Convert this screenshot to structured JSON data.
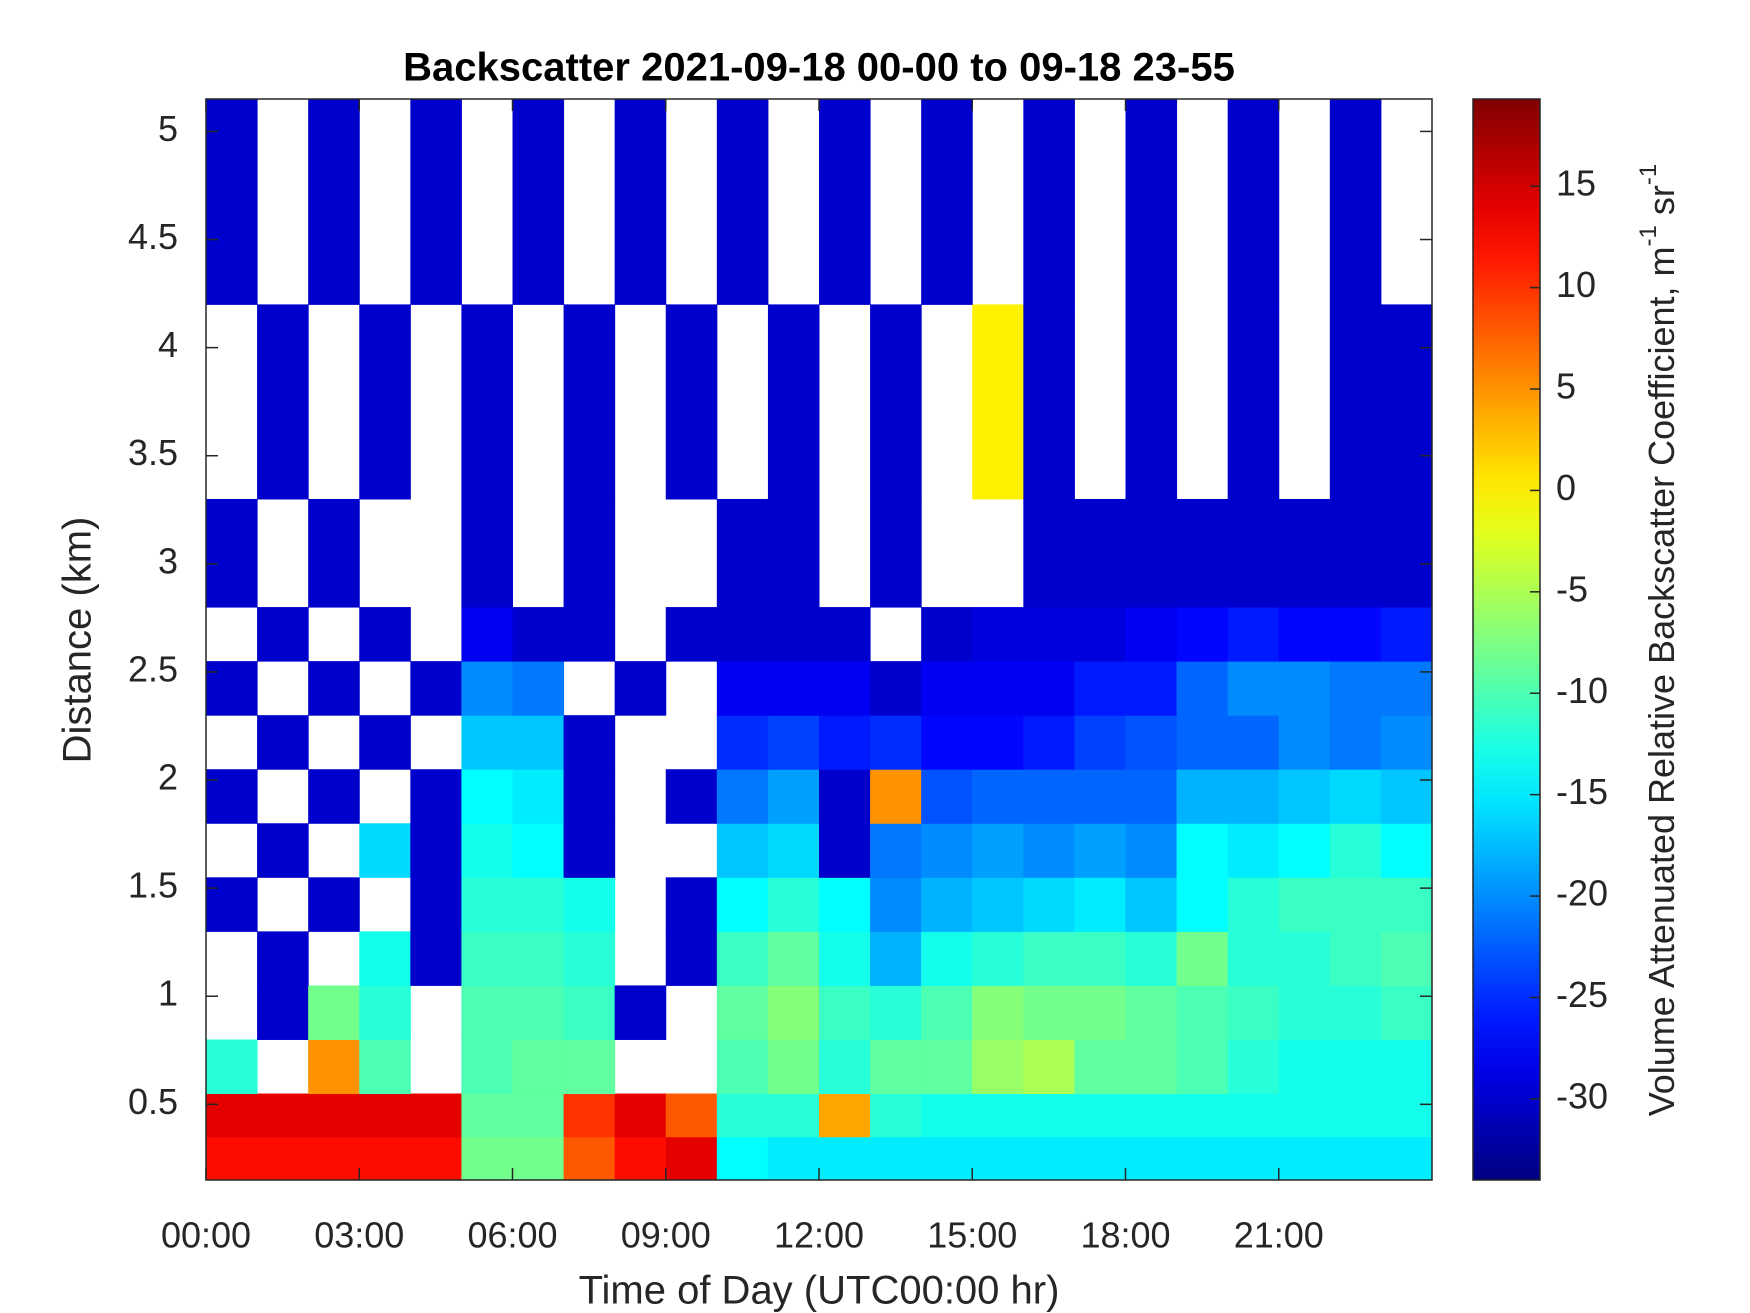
{
  "chart_data": {
    "type": "heatmap",
    "title": "Backscatter 2021-09-18 00-00 to 09-18 23-55",
    "xlabel": "Time of Day (UTC00:00 hr)",
    "ylabel": "Distance (km)",
    "colorbar_label": [
      "Volume Attenuated Relative Backscatter Coefficient, m",
      "-1",
      " sr",
      "-1"
    ],
    "colormap": "jet",
    "xlim": [
      0,
      24
    ],
    "ylim": [
      0.15,
      5.15
    ],
    "clim": [
      -34,
      19.3
    ],
    "xticks": [
      {
        "value": 0,
        "label": "00:00"
      },
      {
        "value": 3,
        "label": "03:00"
      },
      {
        "value": 6,
        "label": "06:00"
      },
      {
        "value": 9,
        "label": "09:00"
      },
      {
        "value": 12,
        "label": "12:00"
      },
      {
        "value": 15,
        "label": "15:00"
      },
      {
        "value": 18,
        "label": "18:00"
      },
      {
        "value": 21,
        "label": "21:00"
      }
    ],
    "yticks": [
      0.5,
      1,
      1.5,
      2,
      2.5,
      3,
      3.5,
      4,
      4.5,
      5
    ],
    "cticks": [
      -30,
      -25,
      -20,
      -15,
      -10,
      -5,
      0,
      5,
      10,
      15
    ],
    "x_edges": [
      0,
      1,
      2,
      3,
      4,
      5,
      6,
      7,
      8,
      9,
      10,
      11,
      12,
      13,
      14,
      15,
      16,
      17,
      18,
      19,
      20,
      21,
      22,
      23,
      24
    ],
    "y_edges": [
      0.15,
      0.35,
      0.55,
      0.8,
      1.05,
      1.3,
      1.55,
      1.8,
      2.05,
      2.3,
      2.55,
      2.8,
      3.3,
      4.2,
      5.15
    ],
    "z": [
      [
        12,
        12,
        12,
        12,
        12,
        -8,
        -8,
        8,
        12,
        14,
        -14,
        -15,
        -15,
        -15,
        -15,
        -15,
        -15,
        -15,
        -15,
        -15,
        -15,
        -15,
        -15,
        -15
      ],
      [
        14,
        14,
        14,
        14,
        14,
        -9,
        -9,
        10,
        14,
        8,
        -12,
        -12,
        4,
        -12,
        -13,
        -13,
        -13,
        -13,
        -13,
        -13,
        -13,
        -13,
        -13,
        -13
      ],
      [
        -12,
        null,
        5,
        -10,
        null,
        -10,
        -9,
        -9,
        null,
        null,
        -10,
        -8,
        -12,
        -9,
        -9,
        -6,
        -5,
        -9,
        -9,
        -10,
        -12,
        -13,
        -13,
        -13
      ],
      [
        null,
        -30,
        -8,
        -12,
        null,
        -10,
        -10,
        -11,
        -30,
        null,
        -9,
        -7,
        -11,
        -12,
        -10,
        -7,
        -8,
        -8,
        -9,
        -10,
        -11,
        -12,
        -12,
        -11
      ],
      [
        null,
        -30,
        null,
        -13,
        -30,
        -11,
        -11,
        -12,
        null,
        -30,
        -11,
        -9,
        -13,
        -18,
        -13,
        -12,
        -11,
        -11,
        -12,
        -8,
        -12,
        -12,
        -11,
        -10
      ],
      [
        -30,
        null,
        -30,
        null,
        -30,
        -12,
        -12,
        -13,
        null,
        -30,
        -14,
        -12,
        -14,
        -20,
        -18,
        -17,
        -16,
        -15,
        -17,
        -14,
        -12,
        -11,
        -11,
        -11
      ],
      [
        null,
        -30,
        null,
        -16,
        -30,
        -13,
        -14,
        -30,
        null,
        null,
        -17,
        -16,
        -30,
        -21,
        -20,
        -19,
        -20,
        -19,
        -20,
        -14,
        -15,
        -14,
        -12,
        -14
      ],
      [
        -30,
        null,
        -30,
        null,
        -30,
        -14,
        -15,
        -30,
        null,
        -30,
        -21,
        -19,
        -30,
        5,
        -23,
        -22,
        -22,
        -22,
        -22,
        -18,
        -18,
        -17,
        -16,
        -17
      ],
      [
        null,
        -30,
        null,
        -30,
        null,
        -17,
        -17,
        -30,
        null,
        null,
        -25,
        -24,
        -26,
        -25,
        -27,
        -27,
        -26,
        -24,
        -23,
        -22,
        -22,
        -20,
        -21,
        -20
      ],
      [
        -30,
        null,
        -30,
        null,
        -30,
        -20,
        -21,
        null,
        -30,
        null,
        -28,
        -28,
        -28,
        -30,
        -28,
        -28,
        -28,
        -26,
        -26,
        -22,
        -20,
        -20,
        -21,
        -21
      ],
      [
        null,
        -30,
        null,
        -30,
        null,
        -28,
        -30,
        -30,
        null,
        -30,
        -30,
        -30,
        -30,
        null,
        -30,
        -29,
        -29,
        -29,
        -28,
        -27,
        -26,
        -27,
        -27,
        -26
      ],
      [
        -30,
        null,
        -30,
        null,
        null,
        -30,
        null,
        -30,
        null,
        null,
        -30,
        -30,
        null,
        -30,
        null,
        null,
        -30,
        -30,
        -30,
        -30,
        -30,
        -30,
        -30,
        -30
      ],
      [
        null,
        -30,
        null,
        -30,
        null,
        -30,
        null,
        -30,
        null,
        -30,
        null,
        -30,
        null,
        -30,
        null,
        0,
        -30,
        null,
        -30,
        null,
        -30,
        null,
        -30,
        -30
      ],
      [
        -30,
        null,
        -30,
        null,
        -30,
        null,
        -30,
        null,
        -30,
        null,
        -30,
        null,
        -30,
        null,
        -30,
        null,
        -30,
        null,
        -30,
        null,
        -30,
        null,
        -30,
        null
      ]
    ]
  }
}
